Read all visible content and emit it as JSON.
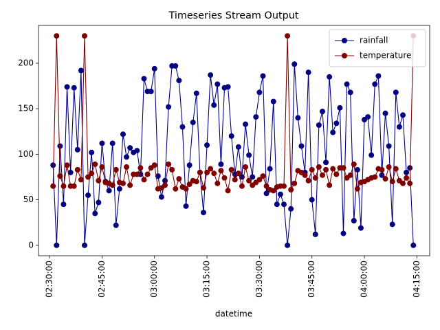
{
  "chart_data": {
    "type": "line",
    "title": "Timeseries Stream Output",
    "x_label": "datetime",
    "x": [
      "02:31:00",
      "02:32:00",
      "02:33:00",
      "02:34:00",
      "02:35:00",
      "02:36:00",
      "02:37:00",
      "02:38:00",
      "02:39:00",
      "02:40:00",
      "02:41:00",
      "02:42:00",
      "02:43:00",
      "02:44:00",
      "02:45:00",
      "02:46:00",
      "02:47:00",
      "02:48:00",
      "02:49:00",
      "02:50:00",
      "02:51:00",
      "02:52:00",
      "02:53:00",
      "02:54:00",
      "02:55:00",
      "02:56:00",
      "02:57:00",
      "02:58:00",
      "02:59:00",
      "03:00:00",
      "03:01:00",
      "03:02:00",
      "03:03:00",
      "03:04:00",
      "03:05:00",
      "03:06:00",
      "03:07:00",
      "03:08:00",
      "03:09:00",
      "03:10:00",
      "03:11:00",
      "03:12:00",
      "03:13:00",
      "03:14:00",
      "03:15:00",
      "03:16:00",
      "03:17:00",
      "03:18:00",
      "03:19:00",
      "03:20:00",
      "03:21:00",
      "03:22:00",
      "03:23:00",
      "03:24:00",
      "03:25:00",
      "03:26:00",
      "03:27:00",
      "03:28:00",
      "03:29:00",
      "03:30:00",
      "03:31:00",
      "03:32:00",
      "03:33:00",
      "03:34:00",
      "03:35:00",
      "03:36:00",
      "03:37:00",
      "03:38:00",
      "03:39:00",
      "03:40:00",
      "03:41:00",
      "03:42:00",
      "03:43:00",
      "03:44:00",
      "03:45:00",
      "03:46:00",
      "03:47:00",
      "03:48:00",
      "03:49:00",
      "03:50:00",
      "03:51:00",
      "03:52:00",
      "03:53:00",
      "03:54:00",
      "03:55:00",
      "03:56:00",
      "03:57:00",
      "03:58:00",
      "03:59:00",
      "04:00:00",
      "04:01:00",
      "04:02:00",
      "04:03:00",
      "04:04:00",
      "04:05:00",
      "04:06:00",
      "04:07:00",
      "04:08:00",
      "04:09:00",
      "04:10:00",
      "04:11:00",
      "04:12:00",
      "04:13:00",
      "04:14:00"
    ],
    "series": [
      {
        "name": "rainfall",
        "color": "#000080",
        "values": [
          88,
          0,
          109,
          45,
          174,
          80,
          173,
          105,
          192,
          0,
          55,
          102,
          35,
          47,
          112,
          70,
          60,
          112,
          22,
          62,
          122,
          97,
          107,
          102,
          104,
          78,
          183,
          169,
          169,
          194,
          76,
          53,
          71,
          152,
          197,
          197,
          181,
          130,
          43,
          88,
          135,
          167,
          80,
          36,
          110,
          187,
          154,
          177,
          89,
          173,
          174,
          120,
          78,
          108,
          75,
          133,
          99,
          75,
          141,
          168,
          186,
          57,
          84,
          158,
          45,
          56,
          45,
          0,
          40,
          199,
          140,
          109,
          80,
          190,
          50,
          12,
          132,
          147,
          91,
          185,
          124,
          134,
          151,
          13,
          177,
          168,
          27,
          83,
          19,
          138,
          141,
          99,
          177,
          186,
          77,
          145,
          109,
          23,
          168,
          130,
          143,
          80,
          85,
          0
        ]
      },
      {
        "name": "temperature",
        "color": "#800000",
        "values": [
          65,
          230,
          76,
          65,
          88,
          65,
          65,
          83,
          72,
          230,
          75,
          79,
          89,
          71,
          86,
          69,
          68,
          66,
          83,
          69,
          68,
          86,
          66,
          78,
          78,
          85,
          72,
          78,
          85,
          88,
          62,
          63,
          66,
          89,
          83,
          62,
          73,
          64,
          62,
          67,
          71,
          70,
          80,
          63,
          80,
          84,
          79,
          68,
          82,
          74,
          60,
          83,
          72,
          79,
          65,
          86,
          71,
          66,
          69,
          72,
          76,
          65,
          61,
          60,
          64,
          65,
          65,
          230,
          61,
          68,
          82,
          80,
          77,
          71,
          83,
          74,
          86,
          77,
          83,
          66,
          84,
          78,
          85,
          85,
          74,
          77,
          89,
          62,
          69,
          70,
          72,
          74,
          75,
          84,
          83,
          73,
          86,
          70,
          84,
          71,
          68,
          74,
          68,
          230
        ]
      }
    ],
    "xlim": [
      "02:26:50",
      "04:18:40"
    ],
    "xticks": [
      "02:30:00",
      "02:45:00",
      "03:00:00",
      "03:15:00",
      "03:30:00",
      "03:45:00",
      "04:00:00",
      "04:15:00"
    ],
    "ylim": [
      -11.5,
      241.5
    ],
    "yticks": [
      0,
      50,
      100,
      150,
      200
    ],
    "legend": "upper right",
    "grid": false
  }
}
